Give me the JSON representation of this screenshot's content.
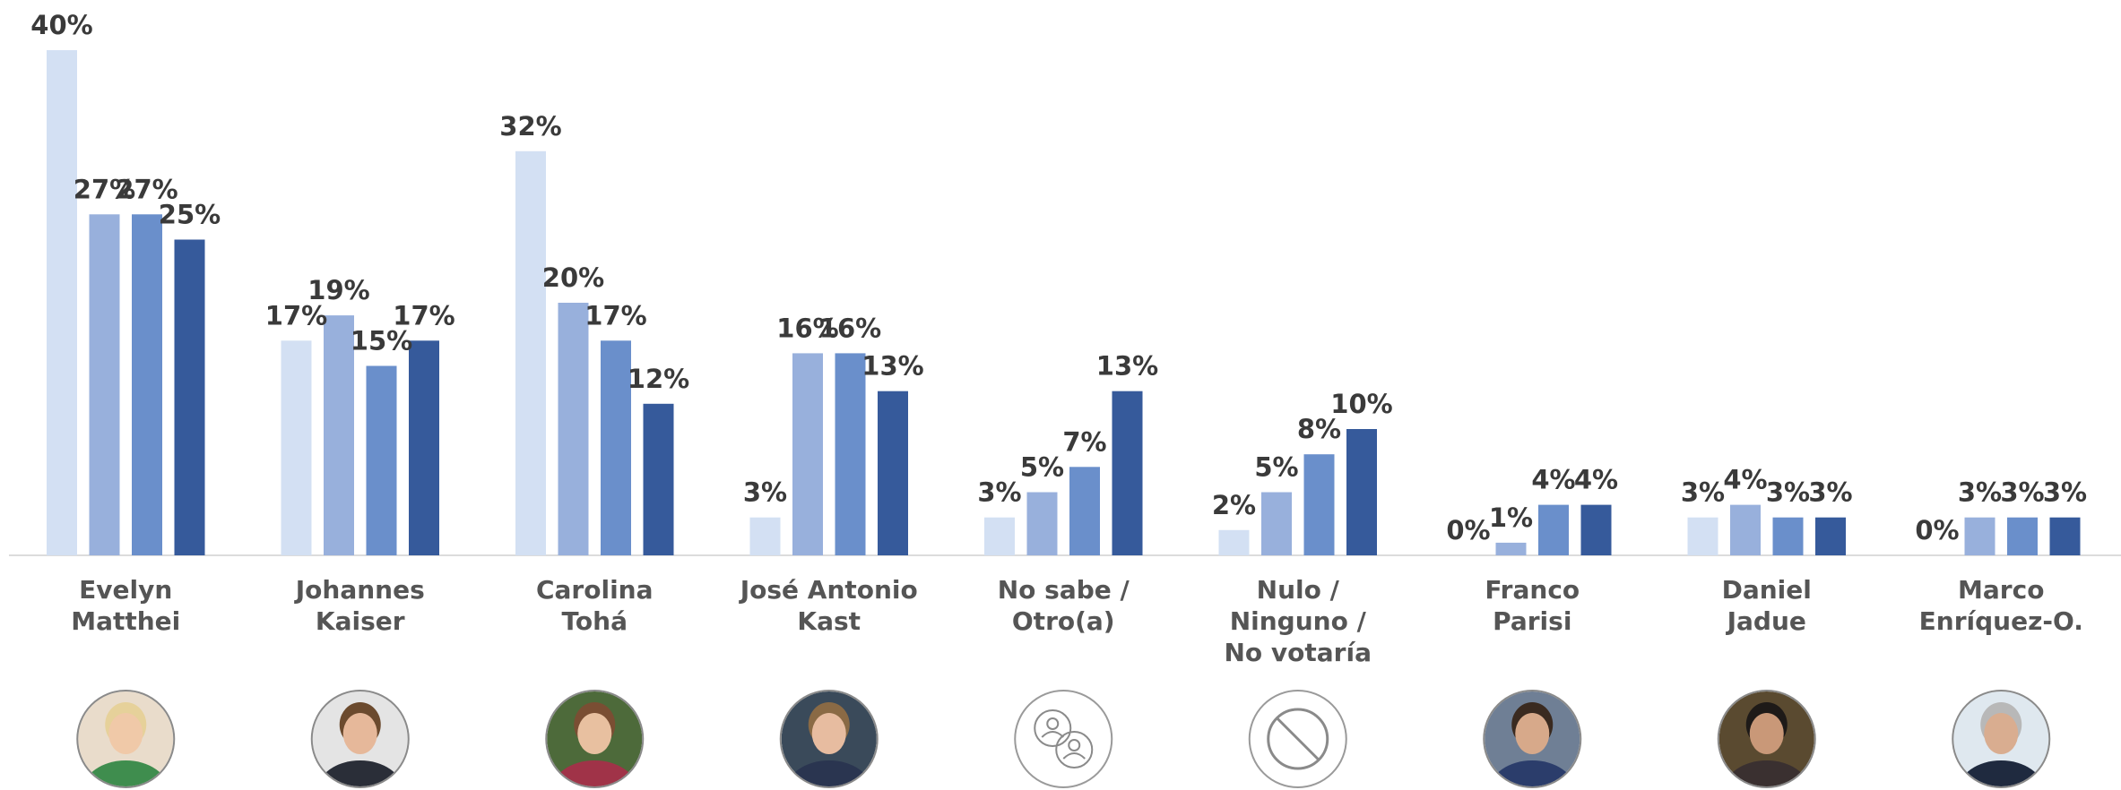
{
  "chart_data": {
    "type": "bar",
    "categories": [
      [
        "Evelyn",
        "Matthei"
      ],
      [
        "Johannes",
        "Kaiser"
      ],
      [
        "Carolina",
        "Tohá"
      ],
      [
        "José Antonio",
        "Kast"
      ],
      [
        "No sabe /",
        "Otro(a)"
      ],
      [
        "Nulo /",
        "Ninguno /",
        "No votaría"
      ],
      [
        "Franco",
        "Parisi"
      ],
      [
        "Daniel",
        "Jadue"
      ],
      [
        "Marco",
        "Enríquez-O."
      ]
    ],
    "series": [
      {
        "color": "#d3e0f3",
        "values": [
          40,
          17,
          32,
          3,
          3,
          2,
          0,
          3,
          0
        ]
      },
      {
        "color": "#98b0dc",
        "values": [
          27,
          19,
          20,
          16,
          5,
          5,
          1,
          4,
          3
        ]
      },
      {
        "color": "#6a8fcb",
        "values": [
          27,
          15,
          17,
          16,
          7,
          8,
          4,
          3,
          3
        ]
      },
      {
        "color": "#365a9b",
        "values": [
          25,
          17,
          12,
          13,
          13,
          10,
          4,
          3,
          3
        ]
      }
    ],
    "value_suffix": "%",
    "ylim": [
      0,
      40
    ],
    "grid": false,
    "legend": "none",
    "category_icons": [
      "avatar-photo",
      "avatar-photo",
      "avatar-photo",
      "avatar-photo",
      "people-target-icon",
      "ban-icon",
      "avatar-photo",
      "avatar-photo",
      "avatar-photo"
    ],
    "avatar_colors": [
      {
        "bg": "#e9dccb",
        "skin": "#f0c9a8",
        "hair": "#e6d19a",
        "shirt": "#3f8d4e"
      },
      {
        "bg": "#e4e4e4",
        "skin": "#e6b89a",
        "hair": "#6b4a2e",
        "shirt": "#2a2e38"
      },
      {
        "bg": "#4d6a3a",
        "skin": "#e8c0a0",
        "hair": "#7a4e33",
        "shirt": "#a03348"
      },
      {
        "bg": "#3a4a5a",
        "skin": "#e7bca0",
        "hair": "#8a6a45",
        "shirt": "#2a3550"
      },
      null,
      null,
      {
        "bg": "#6f7f95",
        "skin": "#d7a98a",
        "hair": "#3a2a20",
        "shirt": "#2b3d6b"
      },
      {
        "bg": "#5a4a30",
        "skin": "#c99878",
        "hair": "#1e1a18",
        "shirt": "#3a3030"
      },
      {
        "bg": "#dfe8ef",
        "skin": "#d9ad90",
        "hair": "#b8b8b8",
        "shirt": "#1f2a3f"
      }
    ]
  }
}
